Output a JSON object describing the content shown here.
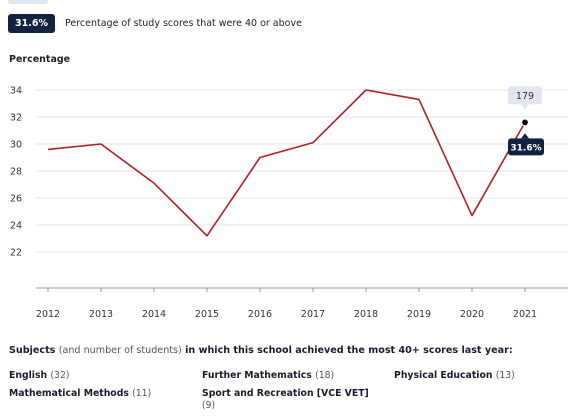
{
  "legend": {
    "badge": "31.6%",
    "text": "Percentage of study scores that were 40 or above"
  },
  "colors": {
    "line": "#b21f24",
    "badge_bg": "#132240",
    "tooltip_bg": "#e2e6ee",
    "grid": "#e6e6e6"
  },
  "chart_data": {
    "type": "line",
    "ylabel": "Percentage",
    "xlabel": "",
    "x": [
      "2012",
      "2013",
      "2014",
      "2015",
      "2016",
      "2017",
      "2018",
      "2019",
      "2020",
      "2021"
    ],
    "series": [
      {
        "values": [
          29.6,
          30.0,
          27.1,
          23.2,
          29.0,
          30.1,
          34.0,
          33.3,
          24.7,
          31.6
        ]
      }
    ],
    "y_ticks": [
      "34",
      "32",
      "30",
      "28",
      "26",
      "24",
      "22"
    ],
    "ylim": [
      18,
      35.5
    ],
    "grid": true,
    "highlight": {
      "x": "2021",
      "value_label": "31.6%",
      "count_label": "179"
    }
  },
  "subjects": {
    "heading_bold_1": "Subjects",
    "heading_muted": "(and number of students)",
    "heading_bold_2": "in which this school achieved the most 40+ scores last year:",
    "items": [
      {
        "name": "English",
        "count": "(32)"
      },
      {
        "name": "Further Mathematics",
        "count": "(18)"
      },
      {
        "name": "Physical Education",
        "count": "(13)"
      },
      {
        "name": "Mathematical Methods",
        "count": "(11)"
      },
      {
        "name": "Sport and Recreation [VCE VET]",
        "count": "(9)"
      }
    ]
  }
}
